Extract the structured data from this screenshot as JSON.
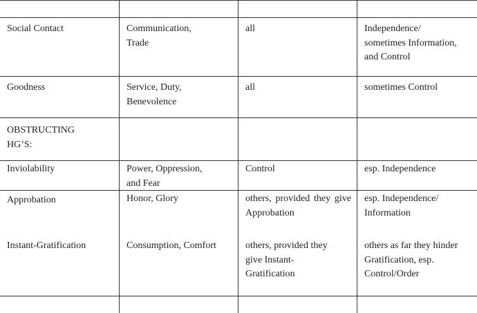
{
  "table": {
    "rows": [
      {
        "cells": [
          "",
          "",
          "",
          ""
        ]
      },
      {
        "cells": [
          "Social Contact",
          "Communication,\nTrade",
          "all",
          "Independence/\nsometimes Information,\nand Control"
        ]
      },
      {
        "cells": [
          "Goodness",
          "Service, Duty,\nBenevolence",
          "all",
          "sometimes Control"
        ]
      },
      {
        "cells": [
          "OBSTRUCTING\nHG’S:",
          "",
          "",
          ""
        ]
      },
      {
        "cells": [
          "Inviolability",
          "Power, Oppression,\nand Fear",
          "Control",
          "esp. Independence"
        ]
      },
      {
        "cells": [
          "Approbation",
          "Honor, Glory",
          "others, provided they give Approbation",
          "esp. Independence/\nInformation"
        ]
      },
      {
        "cells": [
          "Instant-Gratification",
          "Consumption, Comfort",
          "others, provided they\ngive Instant-\nGratification",
          "others as far they hinder\nGratification, esp.\nControl/Order"
        ]
      },
      {
        "cells": [
          "",
          "",
          "",
          ""
        ]
      }
    ]
  }
}
